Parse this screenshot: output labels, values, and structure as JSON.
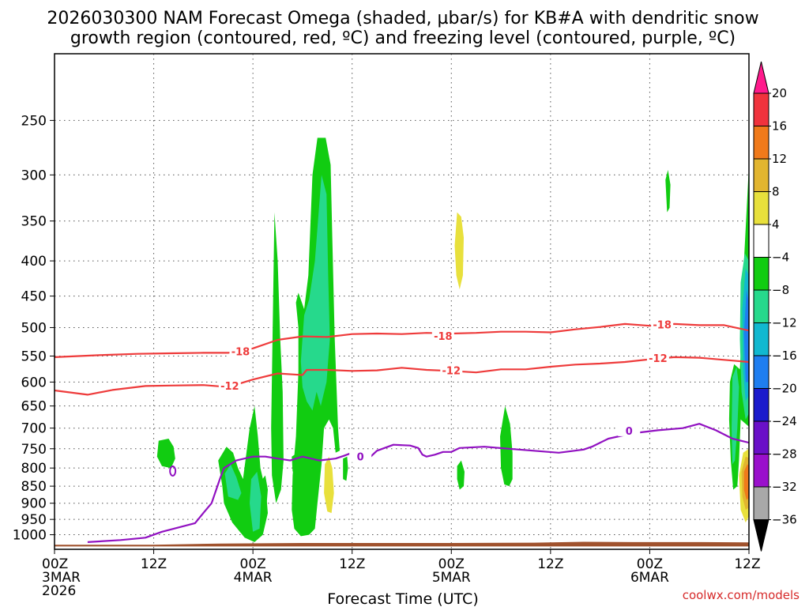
{
  "chart_data": {
    "type": "heatmap",
    "title": "2026030300 NAM Forecast Omega (shaded, µbar/s) for KB#A with dendritic snow growth region (contoured, red, ºC) and freezing level (contoured, purple, ºC)",
    "title_lines": [
      "2026030300 NAM Forecast Omega (shaded, µbar/s) for KB#A with dendritic snow",
      "growth region (contoured, red, ºC) and freezing level (contoured, purple, ºC)"
    ],
    "xlabel": "Forecast Time (UTC)",
    "ylabel": "",
    "x_range_hours": [
      0,
      84
    ],
    "y_range_mb": [
      200,
      1050
    ],
    "x_ticks": [
      {
        "h": 0,
        "lines": [
          "00Z",
          "3MAR",
          "2026"
        ]
      },
      {
        "h": 12,
        "lines": [
          "12Z"
        ]
      },
      {
        "h": 24,
        "lines": [
          "00Z",
          "4MAR"
        ]
      },
      {
        "h": 36,
        "lines": [
          "12Z"
        ]
      },
      {
        "h": 48,
        "lines": [
          "00Z",
          "5MAR"
        ]
      },
      {
        "h": 60,
        "lines": [
          "12Z"
        ]
      },
      {
        "h": 72,
        "lines": [
          "00Z",
          "6MAR"
        ]
      },
      {
        "h": 84,
        "lines": [
          "12Z"
        ]
      }
    ],
    "y_ticks": [
      250,
      300,
      350,
      400,
      450,
      500,
      550,
      600,
      650,
      700,
      750,
      800,
      850,
      900,
      950,
      1000
    ],
    "colorbar": {
      "labels": [
        "20",
        "16",
        "12",
        "8",
        "4",
        "−4",
        "−8",
        "−12",
        "−16",
        "−20",
        "−24",
        "−28",
        "−32",
        "−36"
      ],
      "colors": [
        "#ff1a8c",
        "#f0333d",
        "#f07a1a",
        "#e2b52f",
        "#e8e03c",
        "#ffffff",
        "#11cc11",
        "#26d98c",
        "#11b8d0",
        "#1f7ef0",
        "#1a1acc",
        "#6a10c8",
        "#9a10cc",
        "#a8a8a8",
        "#000000"
      ]
    },
    "contours": {
      "dgz_lines": [
        {
          "label": "-18",
          "color": "#ee3b3b",
          "points": [
            [
              0,
              552
            ],
            [
              6,
              548
            ],
            [
              10,
              546
            ],
            [
              14,
              545
            ],
            [
              18,
              544
            ],
            [
              21,
              544
            ],
            [
              24,
              536
            ],
            [
              27,
              521
            ],
            [
              30,
              515
            ],
            [
              33,
              516
            ],
            [
              36,
              511
            ],
            [
              39,
              510
            ],
            [
              42,
              511
            ],
            [
              45,
              509
            ],
            [
              48,
              510
            ],
            [
              51,
              509
            ],
            [
              54,
              507
            ],
            [
              57,
              507
            ],
            [
              60,
              508
            ],
            [
              63,
              503
            ],
            [
              66,
              499
            ],
            [
              69,
              494
            ],
            [
              72,
              497
            ],
            [
              75,
              494
            ],
            [
              78,
              496
            ],
            [
              81,
              496
            ],
            [
              84,
              505
            ]
          ]
        },
        {
          "label": "-12",
          "color": "#ee3b3b",
          "points": [
            [
              0,
              617
            ],
            [
              4,
              626
            ],
            [
              7,
              616
            ],
            [
              11,
              608
            ],
            [
              14,
              607
            ],
            [
              18,
              606
            ],
            [
              21,
              610
            ],
            [
              24,
              595
            ],
            [
              27,
              583
            ],
            [
              30,
              586
            ],
            [
              30.5,
              576
            ],
            [
              33,
              576
            ],
            [
              36,
              578
            ],
            [
              39,
              577
            ],
            [
              42,
              572
            ],
            [
              45,
              576
            ],
            [
              48,
              578
            ],
            [
              51,
              581
            ],
            [
              54,
              575
            ],
            [
              57,
              575
            ],
            [
              60,
              570
            ],
            [
              63,
              566
            ],
            [
              66,
              564
            ],
            [
              69,
              561
            ],
            [
              72,
              556
            ],
            [
              75,
              552
            ],
            [
              78,
              553
            ],
            [
              81,
              557
            ],
            [
              84,
              561
            ]
          ]
        },
        {
          "label": "0",
          "color": "#9111c1",
          "points": [
            [
              4,
              1025
            ],
            [
              8,
              1018
            ],
            [
              11,
              1010
            ],
            [
              13,
              990
            ],
            [
              17,
              962
            ],
            [
              18,
              930
            ],
            [
              19,
              900
            ],
            [
              20,
              830
            ],
            [
              20.5,
              800
            ],
            [
              22,
              780
            ],
            [
              24,
              770
            ],
            [
              25.5,
              770
            ],
            [
              27,
              775
            ],
            [
              28.5,
              780
            ],
            [
              30,
              770
            ],
            [
              32,
              780
            ],
            [
              34,
              775
            ],
            [
              35,
              768
            ],
            [
              36,
              760
            ],
            [
              37,
              768
            ],
            [
              38,
              775
            ],
            [
              39,
              755
            ],
            [
              41,
              740
            ],
            [
              43,
              742
            ],
            [
              44,
              748
            ],
            [
              44.5,
              765
            ],
            [
              45,
              770
            ],
            [
              46,
              765
            ],
            [
              47,
              758
            ],
            [
              48,
              758
            ],
            [
              49,
              748
            ],
            [
              52,
              745
            ],
            [
              55,
              750
            ],
            [
              58,
              755
            ],
            [
              61,
              760
            ],
            [
              64,
              752
            ],
            [
              65,
              745
            ],
            [
              66,
              735
            ],
            [
              67,
              725
            ],
            [
              70,
              712
            ],
            [
              73,
              705
            ],
            [
              76,
              700
            ],
            [
              78,
              690
            ],
            [
              80,
              705
            ],
            [
              82,
              725
            ],
            [
              84,
              735
            ]
          ]
        }
      ],
      "contour_labels": [
        "-18",
        "-18",
        "-18",
        "-12",
        "-12",
        "-12",
        "0",
        "0"
      ]
    },
    "omega_areas": [
      {
        "level": -8,
        "color": "#11cc11",
        "center_h": 13.5,
        "center_mb": 768
      },
      {
        "level": -8,
        "color": "#11cc11",
        "center_h": 23.5,
        "center_mb": 880
      },
      {
        "level": -8,
        "color": "#11cc11",
        "center_h": 26.5,
        "center_mb": 600
      },
      {
        "level": -8,
        "color": "#11cc11",
        "center_h": 31.5,
        "center_mb": 580
      },
      {
        "level": -8,
        "color": "#11cc11",
        "center_h": 51,
        "center_mb": 785
      },
      {
        "level": -8,
        "color": "#11cc11",
        "center_h": 54.5,
        "center_mb": 730
      },
      {
        "level": -8,
        "color": "#11cc11",
        "center_h": 74,
        "center_mb": 318
      },
      {
        "level": -8,
        "color": "#11cc11",
        "center_h": 83,
        "center_mb": 580
      },
      {
        "level": -12,
        "color": "#26d98c",
        "center_h": 31.5,
        "center_mb": 430
      },
      {
        "level": -16,
        "color": "#11b8d0",
        "center_h": 83.4,
        "center_mb": 470
      },
      {
        "level": -20,
        "color": "#1f7ef0",
        "center_h": 83.5,
        "center_mb": 470
      },
      {
        "level": 4,
        "color": "#e8e03c",
        "center_h": 48.8,
        "center_mb": 360
      },
      {
        "level": 4,
        "color": "#e8e03c",
        "center_h": 33,
        "center_mb": 870
      },
      {
        "level": 12,
        "color": "#f07a1a",
        "center_h": 83,
        "center_mb": 840
      }
    ],
    "terrain": {
      "color": "#a0522d",
      "surface_mb": [
        1035,
        1030,
        1025,
        1025
      ]
    }
  },
  "credit": "coolwx.com/models"
}
